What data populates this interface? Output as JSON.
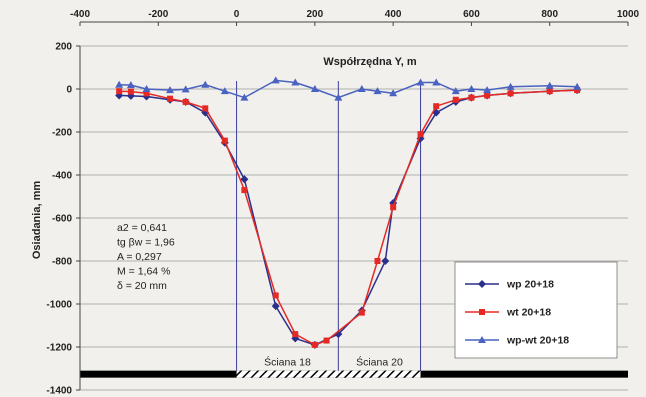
{
  "chart_data": {
    "type": "line",
    "xlabel": "Współrzędna Y,  m",
    "ylabel": "Osiadania,  mm",
    "xlim": [
      -400,
      1000
    ],
    "ylim": [
      -1400,
      200
    ],
    "xticks": [
      -400,
      -200,
      0,
      200,
      400,
      600,
      800,
      1000
    ],
    "yticks": [
      200,
      0,
      -200,
      -400,
      -600,
      -800,
      -1000,
      -1200,
      -1400
    ],
    "x_axis_position": "top",
    "grid": "horizontal",
    "legend_position": "bottom-right",
    "annotations": [
      "a2 = 0,641",
      "tg βw = 1,96",
      "A = 0,297",
      "M = 1,64 %",
      "δ = 20 mm"
    ],
    "panels": [
      {
        "label": "Ściana 18",
        "x_range": [
          0,
          260
        ]
      },
      {
        "label": "Ściana 20",
        "x_range": [
          260,
          470
        ]
      }
    ],
    "colors": {
      "background": "#f1f0ec",
      "axis": "#444444",
      "grid": "#9a9a9a",
      "wall_line": "#3a3f99"
    },
    "series": [
      {
        "name": "wp  20+18",
        "color": "#2b2f8c",
        "marker": "diamond",
        "points": [
          [
            -300,
            -30
          ],
          [
            -270,
            -32
          ],
          [
            -230,
            -35
          ],
          [
            -170,
            -50
          ],
          [
            -130,
            -60
          ],
          [
            -80,
            -110
          ],
          [
            -30,
            -250
          ],
          [
            20,
            -420
          ],
          [
            100,
            -1010
          ],
          [
            150,
            -1160
          ],
          [
            200,
            -1190
          ],
          [
            260,
            -1140
          ],
          [
            320,
            -1030
          ],
          [
            380,
            -800
          ],
          [
            400,
            -530
          ],
          [
            470,
            -230
          ],
          [
            510,
            -110
          ],
          [
            560,
            -60
          ],
          [
            600,
            -40
          ],
          [
            640,
            -30
          ],
          [
            700,
            -20
          ],
          [
            800,
            -10
          ],
          [
            870,
            -5
          ]
        ]
      },
      {
        "name": "wt  20+18",
        "color": "#e52a25",
        "marker": "square",
        "points": [
          [
            -300,
            -10
          ],
          [
            -270,
            -12
          ],
          [
            -230,
            -20
          ],
          [
            -170,
            -45
          ],
          [
            -130,
            -60
          ],
          [
            -80,
            -90
          ],
          [
            -30,
            -240
          ],
          [
            20,
            -470
          ],
          [
            100,
            -960
          ],
          [
            150,
            -1140
          ],
          [
            200,
            -1190
          ],
          [
            230,
            -1170
          ],
          [
            320,
            -1040
          ],
          [
            360,
            -800
          ],
          [
            400,
            -550
          ],
          [
            470,
            -210
          ],
          [
            510,
            -80
          ],
          [
            560,
            -50
          ],
          [
            600,
            -40
          ],
          [
            640,
            -30
          ],
          [
            700,
            -20
          ],
          [
            800,
            -10
          ],
          [
            870,
            -5
          ]
        ]
      },
      {
        "name": "wp-wt 20+18",
        "color": "#4a62c0",
        "marker": "triangle",
        "points": [
          [
            -300,
            20
          ],
          [
            -270,
            18
          ],
          [
            -230,
            0
          ],
          [
            -170,
            -5
          ],
          [
            -130,
            -2
          ],
          [
            -80,
            20
          ],
          [
            -30,
            -10
          ],
          [
            20,
            -40
          ],
          [
            100,
            40
          ],
          [
            150,
            30
          ],
          [
            200,
            0
          ],
          [
            260,
            -40
          ],
          [
            320,
            0
          ],
          [
            360,
            -10
          ],
          [
            400,
            -20
          ],
          [
            470,
            30
          ],
          [
            510,
            30
          ],
          [
            560,
            -10
          ],
          [
            600,
            0
          ],
          [
            640,
            -5
          ],
          [
            700,
            10
          ],
          [
            800,
            15
          ],
          [
            870,
            10
          ]
        ]
      }
    ]
  }
}
